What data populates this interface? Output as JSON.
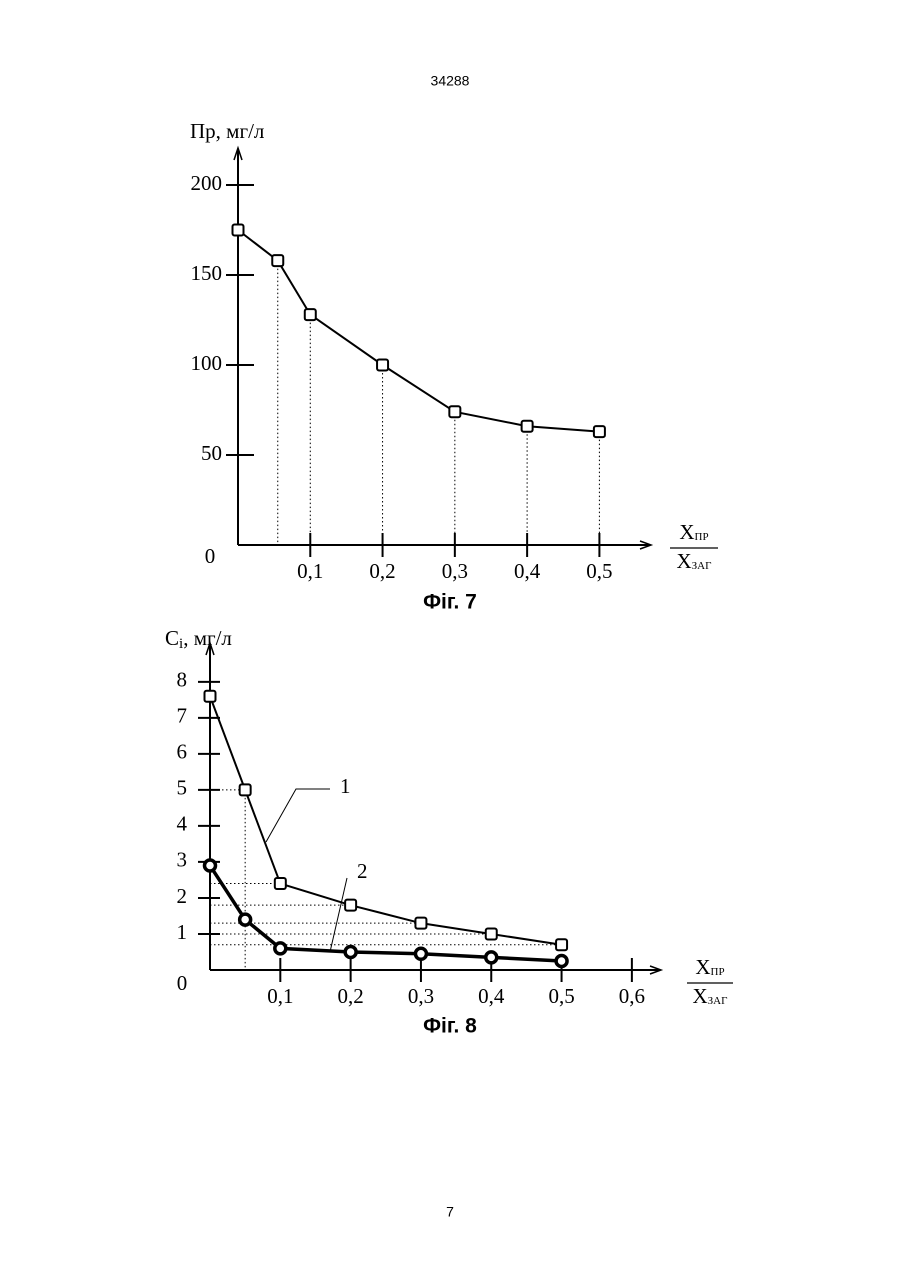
{
  "header": "34288",
  "footer": "7",
  "chart_data": [
    {
      "type": "line",
      "caption": "Фіг. 7",
      "ylabel": "Пр, мг/л",
      "xlabel": {
        "numerator": "Х",
        "numerator_sub": "ПР",
        "denominator": "Х",
        "denominator_sub": "ЗАГ"
      },
      "xlim": [
        0,
        0.57
      ],
      "ylim": [
        0,
        215
      ],
      "xticks": [
        {
          "value": 0.1,
          "label": "0,1"
        },
        {
          "value": 0.2,
          "label": "0,2"
        },
        {
          "value": 0.3,
          "label": "0,3"
        },
        {
          "value": 0.4,
          "label": "0,4"
        },
        {
          "value": 0.5,
          "label": "0,5"
        }
      ],
      "yticks": [
        0,
        50,
        100,
        150,
        200
      ],
      "series": [
        {
          "color": "#000000",
          "marker": "square",
          "linewidth": 2,
          "x": [
            0,
            0.055,
            0.1,
            0.2,
            0.3,
            0.4,
            0.5
          ],
          "values": [
            175,
            158,
            128,
            100,
            74,
            66,
            63
          ]
        }
      ]
    },
    {
      "type": "line",
      "caption": "Фіг. 8",
      "ylabel": {
        "text": "C",
        "sub": "i",
        "rest": ", мг/л"
      },
      "xlabel": {
        "numerator": "Х",
        "numerator_sub": "ПР",
        "denominator": "Х",
        "denominator_sub": "ЗАГ"
      },
      "xlim": [
        0,
        0.64
      ],
      "ylim": [
        0,
        8.8
      ],
      "xticks": [
        {
          "value": 0.1,
          "label": "0,1"
        },
        {
          "value": 0.2,
          "label": "0,2"
        },
        {
          "value": 0.3,
          "label": "0,3"
        },
        {
          "value": 0.4,
          "label": "0,4"
        },
        {
          "value": 0.5,
          "label": "0,5"
        },
        {
          "value": 0.6,
          "label": "0,6"
        }
      ],
      "yticks": [
        0,
        1,
        2,
        3,
        4,
        5,
        6,
        7,
        8
      ],
      "series": [
        {
          "name": "1",
          "color": "#000000",
          "marker": "square",
          "linewidth": 2,
          "x": [
            0,
            0.05,
            0.1,
            0.2,
            0.3,
            0.4,
            0.5
          ],
          "values": [
            7.6,
            5,
            2.4,
            1.8,
            1.3,
            1.0,
            0.7
          ]
        },
        {
          "name": "2",
          "color": "#000000",
          "marker": "circle",
          "linewidth": 3.5,
          "x": [
            0,
            0.05,
            0.1,
            0.2,
            0.3,
            0.4,
            0.5
          ],
          "values": [
            2.9,
            1.4,
            0.6,
            0.5,
            0.45,
            0.35,
            0.25
          ]
        }
      ]
    }
  ]
}
